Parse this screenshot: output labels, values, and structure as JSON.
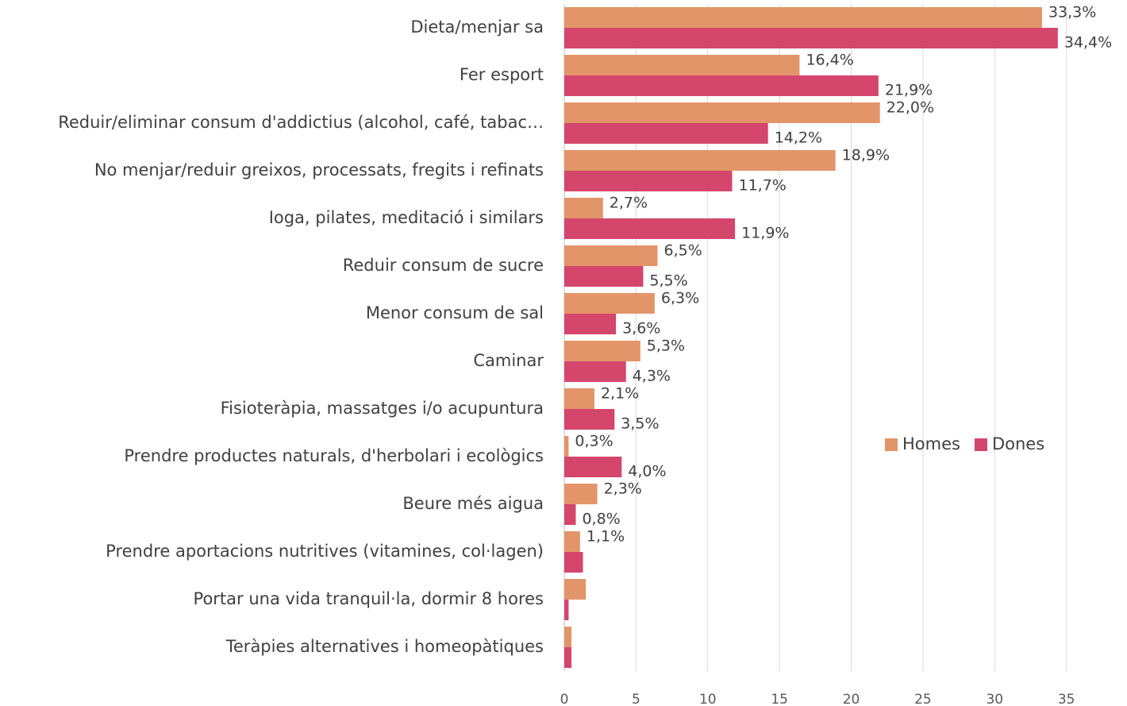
{
  "chart_data": {
    "type": "bar",
    "orientation": "horizontal",
    "categories": [
      "Dieta/menjar sa",
      "Fer esport",
      "Reduir/eliminar consum d'addictius (alcohol, café, tabac…",
      "No menjar/reduir greixos, processats, fregits i refinats",
      "Ioga, pilates, meditació i similars",
      "Reduir consum de sucre",
      "Menor consum de sal",
      "Caminar",
      "Fisioteràpia, massatges i/o acupuntura",
      "Prendre productes naturals, d'herbolari i ecològics",
      "Beure més aigua",
      "Prendre aportacions nutritives (vitamines, col·lagen)",
      "Portar una vida tranquil·la, dormir 8 hores",
      "Teràpies alternatives i homeopàtiques"
    ],
    "series": [
      {
        "name": "Homes",
        "color": "#e3956a",
        "values": [
          33.3,
          16.4,
          22.0,
          18.9,
          2.7,
          6.5,
          6.3,
          5.3,
          2.1,
          0.3,
          2.3,
          1.1,
          1.5,
          0.5
        ],
        "value_labels": [
          "33,3%",
          "16,4%",
          "22,0%",
          "18,9%",
          "2,7%",
          "6,5%",
          "6,3%",
          "5,3%",
          "2,1%",
          "0,3%",
          "2,3%",
          "1,1%",
          null,
          null
        ]
      },
      {
        "name": "Dones",
        "color": "#d4466b",
        "values": [
          34.4,
          21.9,
          14.2,
          11.7,
          11.9,
          5.5,
          3.6,
          4.3,
          3.5,
          4.0,
          0.8,
          1.3,
          0.3,
          0.5
        ],
        "value_labels": [
          "34,4%",
          "21,9%",
          "14,2%",
          "11,7%",
          "11,9%",
          "5,5%",
          "3,6%",
          "4,3%",
          "3,5%",
          "4,0%",
          "0,8%",
          null,
          null,
          null
        ]
      }
    ],
    "xlim": [
      0,
      39
    ],
    "xticks": [
      0,
      5,
      10,
      15,
      20,
      25,
      30,
      35
    ],
    "grid": true,
    "legend": "right"
  }
}
